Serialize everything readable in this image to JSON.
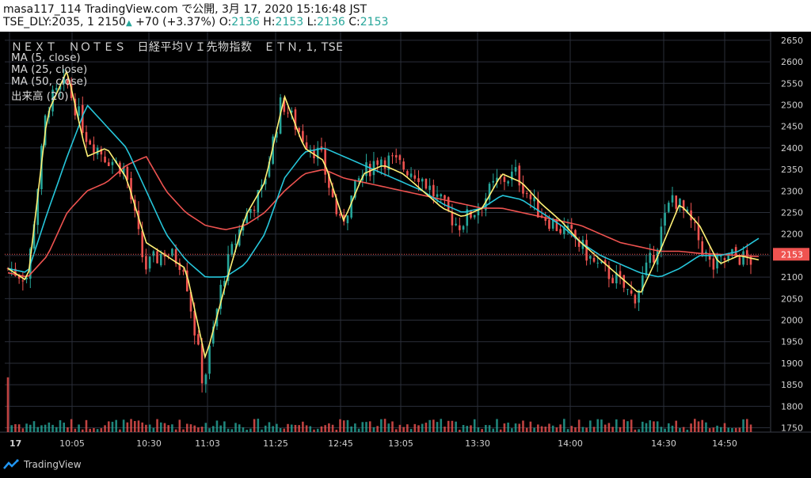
{
  "header": {
    "author": "masa117_114",
    "site": "TradingView.com",
    "published": "で公開, 3月 17, 2020 15:16:48 JST",
    "symbol_code": "TSE_DLY:2035, 1",
    "last": "2150",
    "change": "+70 (+3.37%)",
    "o_label": "O:",
    "o": "2136",
    "h_label": "H:",
    "h": "2153",
    "l_label": "L:",
    "l": "2136",
    "c_label": "C:",
    "c": "2153"
  },
  "legend": {
    "symbol": "ＮＥＸＴ　ＮＯＴＥＳ　日経平均ＶＩ先物指数　ＥＴＮ, 1, TSE",
    "ma5": "MA (5, close)",
    "ma25": "MA (25, close)",
    "ma50": "MA (50, close)",
    "volume": "出来高 (20)"
  },
  "footer": {
    "brand": "TradingView"
  },
  "colors": {
    "up": "#26a69a",
    "down": "#ef5350",
    "ma5": "#fff176",
    "ma25": "#26c6da",
    "ma50": "#ef5350",
    "grid": "#2a2e39",
    "price_tag": "#ef5350"
  },
  "chart_data": {
    "type": "candlestick",
    "ylim": [
      1740,
      2670
    ],
    "y_ticks": [
      2650,
      2600,
      2550,
      2500,
      2450,
      2400,
      2350,
      2300,
      2250,
      2200,
      2150,
      2100,
      2050,
      2000,
      1950,
      1900,
      1850,
      1800,
      1750
    ],
    "x_ticks": [
      "17",
      "10:05",
      "10:30",
      "11:03",
      "11:25",
      "12:45",
      "13:05",
      "13:30",
      "14:00",
      "14:30",
      "14:50"
    ],
    "current_price": "2153",
    "price_anchors": [
      2120,
      2100,
      2500,
      2550,
      2430,
      2380,
      2350,
      2120,
      2160,
      2130,
      1850,
      2100,
      2230,
      2300,
      2510,
      2430,
      2380,
      2220,
      2330,
      2380,
      2360,
      2340,
      2280,
      2220,
      2260,
      2320,
      2340,
      2260,
      2220,
      2190,
      2130,
      2100,
      2050,
      2150,
      2290,
      2220,
      2120,
      2150,
      2140
    ],
    "ma5": [
      2120,
      2090,
      2480,
      2580,
      2380,
      2400,
      2330,
      2180,
      2150,
      2120,
      1910,
      2080,
      2240,
      2320,
      2520,
      2400,
      2370,
      2230,
      2340,
      2360,
      2340,
      2300,
      2260,
      2240,
      2260,
      2340,
      2320,
      2270,
      2230,
      2180,
      2140,
      2100,
      2060,
      2160,
      2270,
      2220,
      2130,
      2150,
      2140
    ],
    "ma25": [
      2120,
      2110,
      2250,
      2380,
      2500,
      2450,
      2400,
      2300,
      2200,
      2140,
      2100,
      2100,
      2130,
      2200,
      2330,
      2390,
      2400,
      2380,
      2360,
      2340,
      2320,
      2300,
      2270,
      2250,
      2260,
      2290,
      2280,
      2250,
      2220,
      2180,
      2150,
      2130,
      2110,
      2100,
      2120,
      2150,
      2150,
      2160,
      2190
    ],
    "ma50": [
      2110,
      2100,
      2150,
      2250,
      2300,
      2320,
      2360,
      2380,
      2300,
      2250,
      2220,
      2210,
      2220,
      2250,
      2300,
      2340,
      2350,
      2330,
      2320,
      2310,
      2300,
      2290,
      2280,
      2270,
      2260,
      2260,
      2250,
      2240,
      2230,
      2220,
      2200,
      2180,
      2170,
      2160,
      2160,
      2155,
      2153,
      2150,
      2148
    ],
    "volume_series": "出来高 (20)"
  }
}
